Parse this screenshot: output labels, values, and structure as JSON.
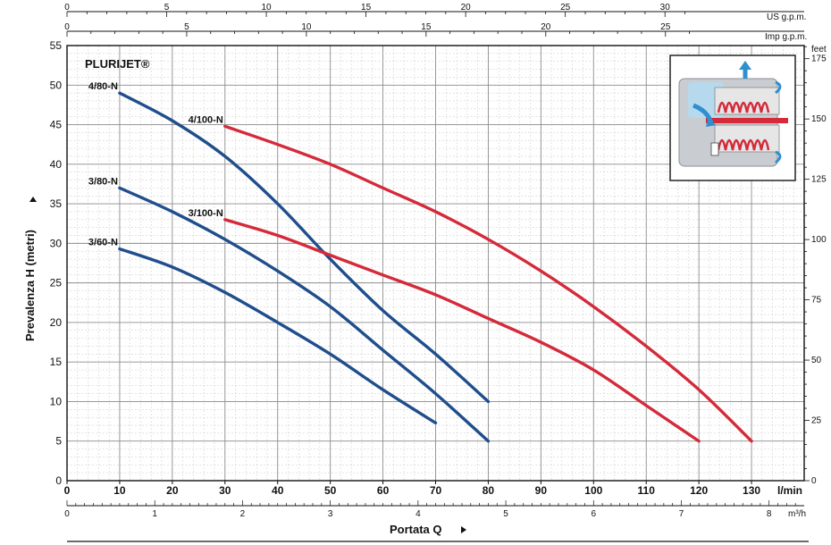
{
  "chart_data": {
    "type": "line",
    "title": "PLURIJET®",
    "xlabel": "Portata Q",
    "ylabel": "Prevalenza H (metri)",
    "x_unit": "l/min",
    "xlim": [
      0,
      140
    ],
    "ylim": [
      0,
      55
    ],
    "x_ticks": [
      0,
      10,
      20,
      30,
      40,
      50,
      60,
      70,
      80,
      90,
      100,
      110,
      120,
      130
    ],
    "y_ticks": [
      0,
      5,
      10,
      15,
      20,
      25,
      30,
      35,
      40,
      45,
      50,
      55
    ],
    "grid": true,
    "secondary_axes": {
      "us_gpm": {
        "label": "US g.p.m.",
        "ticks": [
          0,
          5,
          10,
          15,
          20,
          25,
          30
        ]
      },
      "imp_gpm": {
        "label": "Imp g.p.m.",
        "ticks": [
          0,
          5,
          10,
          15,
          20,
          25
        ]
      },
      "m3h": {
        "label": "m³/h",
        "ticks": [
          0,
          1,
          2,
          3,
          4,
          5,
          6,
          7,
          8
        ]
      },
      "feet": {
        "label": "feet",
        "ticks": [
          0,
          25,
          50,
          75,
          100,
          125,
          150,
          175
        ]
      }
    },
    "series": [
      {
        "name": "4/80-N",
        "color": "#1f4e8c",
        "x": [
          10,
          20,
          30,
          40,
          50,
          60,
          70,
          80
        ],
        "y": [
          49,
          45.5,
          41,
          35,
          28,
          21.5,
          16,
          10
        ]
      },
      {
        "name": "3/80-N",
        "color": "#1f4e8c",
        "x": [
          10,
          20,
          30,
          40,
          50,
          60,
          70,
          80
        ],
        "y": [
          37,
          34,
          30.5,
          26.5,
          22,
          16.5,
          11,
          5
        ]
      },
      {
        "name": "3/60-N",
        "color": "#1f4e8c",
        "x": [
          10,
          20,
          30,
          40,
          50,
          60,
          70
        ],
        "y": [
          29.3,
          27,
          23.8,
          20,
          16,
          11.5,
          7.3
        ]
      },
      {
        "name": "4/100-N",
        "color": "#d42a3a",
        "x": [
          30,
          40,
          50,
          60,
          70,
          80,
          90,
          100,
          110,
          120,
          130
        ],
        "y": [
          44.8,
          42.5,
          40,
          37,
          34,
          30.5,
          26.5,
          22,
          17,
          11.5,
          5
        ]
      },
      {
        "name": "3/100-N",
        "color": "#d42a3a",
        "x": [
          30,
          40,
          50,
          60,
          70,
          80,
          90,
          100,
          110,
          120
        ],
        "y": [
          33,
          31,
          28.5,
          26,
          23.5,
          20.5,
          17.5,
          14,
          9.5,
          5
        ]
      }
    ]
  }
}
